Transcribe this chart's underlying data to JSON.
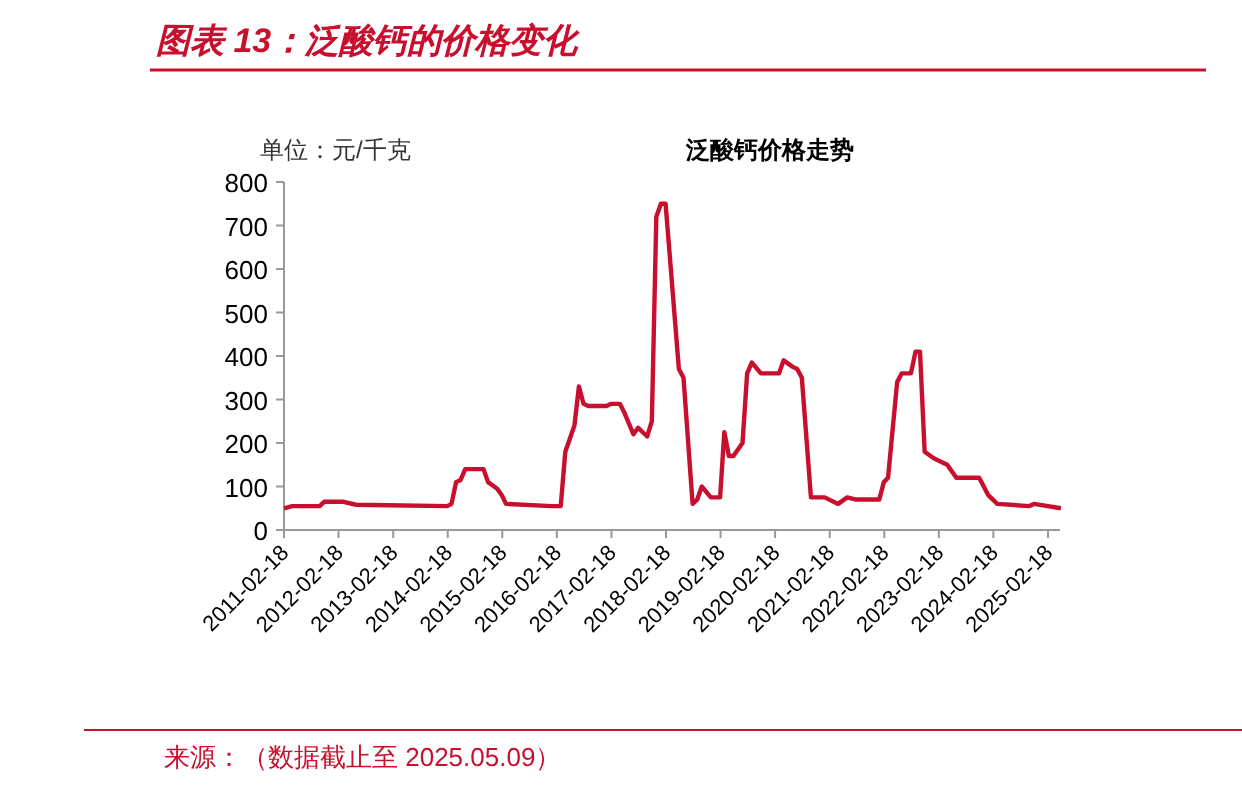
{
  "chart_data": {
    "type": "line",
    "title": "图表 13：泛酸钙的价格变化",
    "subtitle": "泛酸钙价格走势",
    "ylabel": "单位：元/千克",
    "annotations": [
      "来源：（数据截止至 2025.05.09）"
    ],
    "grid": false,
    "marker": "none",
    "line_style": "solid",
    "xlim": [
      "2011-02-18",
      "2025-05-09"
    ],
    "ylim": [
      0,
      800
    ],
    "yticks": [
      0,
      100,
      200,
      300,
      400,
      500,
      600,
      700,
      800
    ],
    "xticks": [
      "2011-02-18",
      "2012-02-18",
      "2013-02-18",
      "2014-02-18",
      "2015-02-18",
      "2016-02-18",
      "2017-02-18",
      "2018-02-18",
      "2019-02-18",
      "2020-02-18",
      "2021-02-18",
      "2022-02-18",
      "2023-02-18",
      "2024-02-18",
      "2025-02-18"
    ],
    "series": [
      {
        "color": "#c8102e",
        "x": [
          "2011-02-18",
          "2011-04",
          "2011-10",
          "2011-11",
          "2012-03",
          "2012-06",
          "2013-01",
          "2014-02",
          "2014-03",
          "2014-04",
          "2014-05",
          "2014-06",
          "2014-10",
          "2014-11",
          "2015-01",
          "2015-02",
          "2015-03",
          "2016-01",
          "2016-03",
          "2016-04",
          "2016-06",
          "2016-07",
          "2016-08",
          "2016-09",
          "2017-01",
          "2017-02",
          "2017-04",
          "2017-05",
          "2017-07",
          "2017-08",
          "2017-10",
          "2017-11",
          "2017-12",
          "2018-01",
          "2018-02",
          "2018-05",
          "2018-06",
          "2018-08",
          "2018-09",
          "2018-10",
          "2018-12",
          "2019-02",
          "2019-03",
          "2019-04",
          "2019-05",
          "2019-07",
          "2019-08",
          "2019-09",
          "2019-11",
          "2020-03",
          "2020-04",
          "2020-06",
          "2020-07",
          "2020-08",
          "2020-10",
          "2021-01",
          "2021-04",
          "2021-06",
          "2021-08",
          "2022-01",
          "2022-02",
          "2022-03",
          "2022-05",
          "2022-06",
          "2022-08",
          "2022-09",
          "2022-10",
          "2022-11",
          "2023-01",
          "2023-04",
          "2023-06",
          "2023-11",
          "2024-01",
          "2024-03",
          "2024-10",
          "2024-11",
          "2025-05"
        ],
        "values": [
          50,
          55,
          55,
          65,
          65,
          58,
          57,
          55,
          60,
          110,
          115,
          140,
          140,
          110,
          95,
          80,
          60,
          55,
          55,
          180,
          240,
          330,
          290,
          285,
          285,
          290,
          290,
          270,
          220,
          235,
          215,
          250,
          720,
          750,
          750,
          370,
          350,
          60,
          70,
          100,
          75,
          75,
          225,
          170,
          170,
          200,
          360,
          385,
          360,
          360,
          390,
          375,
          370,
          350,
          75,
          75,
          60,
          75,
          70,
          70,
          110,
          120,
          340,
          360,
          360,
          410,
          410,
          180,
          165,
          150,
          120,
          120,
          80,
          60,
          55,
          60,
          50
        ]
      }
    ]
  }
}
